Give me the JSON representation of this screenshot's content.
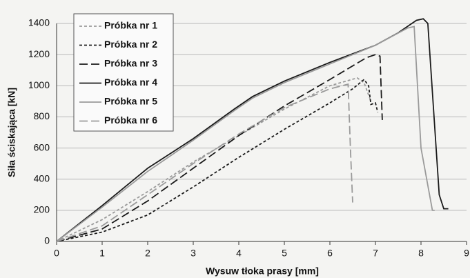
{
  "chart_data": {
    "type": "line",
    "x_label": "Wysuw tłoka prasy [mm]",
    "y_label": "Siła ściskająca [kN]",
    "xlim": [
      0,
      9
    ],
    "xticks": [
      0,
      1,
      2,
      3,
      4,
      5,
      6,
      7,
      8,
      9
    ],
    "ylim": [
      0,
      1400
    ],
    "yticks": [
      0,
      200,
      400,
      600,
      800,
      1000,
      1200,
      1400
    ],
    "grid": true,
    "legend": "upper left",
    "series": [
      {
        "name": "Próbka nr 1",
        "color": "#9a9a9a",
        "dash": "short",
        "x": [
          0,
          1,
          2,
          3,
          4,
          5,
          6,
          6.6,
          6.75,
          6.9
        ],
        "values": [
          0,
          140,
          320,
          510,
          680,
          850,
          1000,
          1050,
          1020,
          900
        ]
      },
      {
        "name": "Próbka nr 2",
        "color": "#1a1a1a",
        "dash": "short",
        "x": [
          0,
          1,
          2,
          3,
          4,
          5,
          6,
          6.5,
          6.75,
          6.85,
          6.9,
          7.0,
          7.05
        ],
        "values": [
          0,
          60,
          170,
          350,
          540,
          720,
          890,
          980,
          1040,
          1000,
          880,
          890,
          830
        ]
      },
      {
        "name": "Próbka nr 3",
        "color": "#1a1a1a",
        "dash": "long",
        "x": [
          0,
          1,
          2,
          3,
          4,
          5,
          6,
          6.8,
          7.0,
          7.1,
          7.15
        ],
        "values": [
          0,
          80,
          260,
          470,
          680,
          870,
          1040,
          1180,
          1200,
          1190,
          780
        ]
      },
      {
        "name": "Próbka nr 4",
        "color": "#1a1a1a",
        "dash": "solid",
        "x": [
          0,
          1,
          2,
          3,
          3.9,
          4.3,
          5,
          6,
          7,
          7.5,
          7.9,
          8.05,
          8.15,
          8.4,
          8.5,
          8.6
        ],
        "values": [
          0,
          230,
          470,
          660,
          850,
          930,
          1030,
          1150,
          1260,
          1340,
          1420,
          1430,
          1400,
          300,
          210,
          210
        ]
      },
      {
        "name": "Próbka nr 5",
        "color": "#9a9a9a",
        "dash": "solid",
        "x": [
          0,
          1,
          2,
          3,
          3.9,
          4.3,
          5,
          6,
          7,
          7.7,
          7.85,
          8.0,
          8.25,
          8.3
        ],
        "values": [
          0,
          220,
          450,
          650,
          840,
          920,
          1020,
          1140,
          1260,
          1370,
          1380,
          600,
          200,
          200
        ]
      },
      {
        "name": "Próbka nr 6",
        "color": "#9a9a9a",
        "dash": "long",
        "x": [
          0,
          1,
          2,
          3,
          4,
          5,
          6,
          6.4,
          6.45,
          6.5
        ],
        "values": [
          0,
          100,
          300,
          500,
          690,
          860,
          980,
          1010,
          600,
          250
        ]
      }
    ]
  }
}
